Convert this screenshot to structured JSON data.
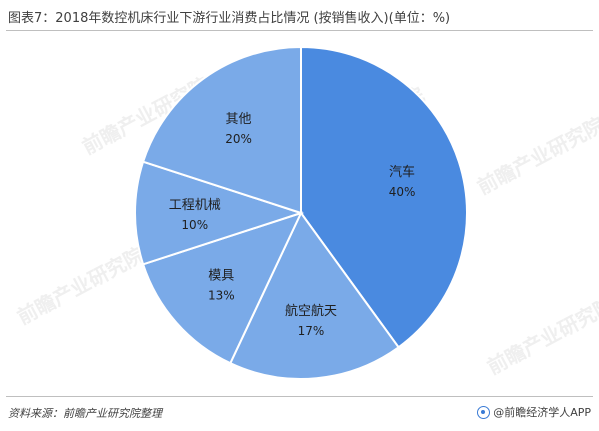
{
  "title": "图表7：2018年数控机床行业下游行业消费占比情况 (按销售收入)(单位：%)",
  "source": "资料来源：前瞻产业研究院整理",
  "brand": "@前瞻经济学人APP",
  "watermark": "前瞻产业研究院",
  "colors": {
    "primary": "#4a8ae0",
    "secondary": "#7aaae8",
    "stroke": "#ffffff",
    "label": "#1f1f1f"
  },
  "chart_data": {
    "type": "pie",
    "title": "图表7：2018年数控机床行业下游行业消费占比情况 (按销售收入)(单位：%)",
    "unit": "%",
    "slices": [
      {
        "label": "汽车",
        "value": 40,
        "value_label": "40%"
      },
      {
        "label": "航空航天",
        "value": 17,
        "value_label": "17%"
      },
      {
        "label": "模具",
        "value": 13,
        "value_label": "13%"
      },
      {
        "label": "工程机械",
        "value": 10,
        "value_label": "10%"
      },
      {
        "label": "其他",
        "value": 20,
        "value_label": "20%"
      }
    ]
  }
}
